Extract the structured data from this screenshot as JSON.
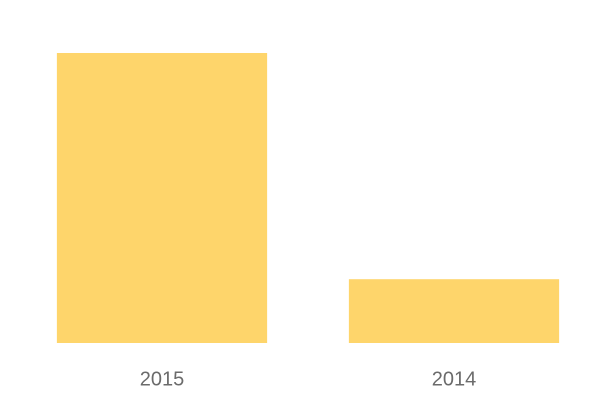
{
  "chart_data": {
    "type": "bar",
    "categories": [
      "2015",
      "2014"
    ],
    "values": [
      100,
      22
    ],
    "color": "#fed56b",
    "ylim": [
      0,
      100
    ]
  }
}
